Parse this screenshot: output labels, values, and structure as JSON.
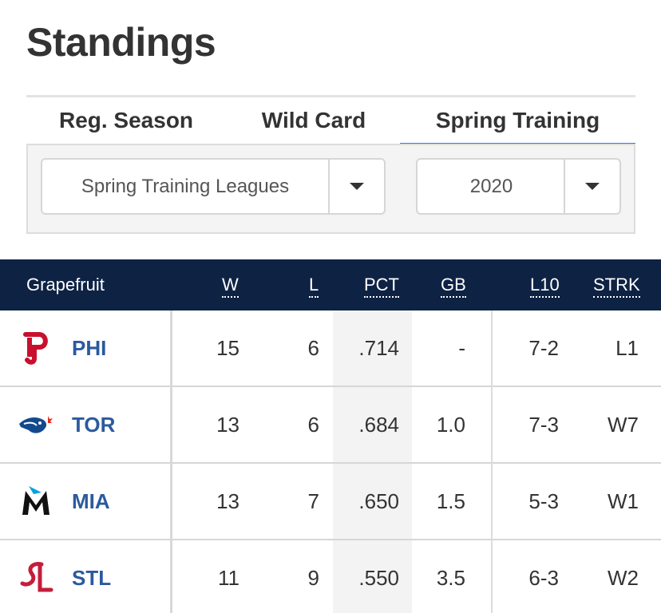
{
  "page_title": "Standings",
  "tabs": [
    {
      "label": "Reg. Season"
    },
    {
      "label": "Wild Card"
    },
    {
      "label": "Spring Training",
      "active": true
    }
  ],
  "filters": {
    "league_select": {
      "value": "Spring Training Leagues"
    },
    "year_select": {
      "value": "2020"
    }
  },
  "table": {
    "league": "Grapefruit",
    "columns": {
      "w": "W",
      "l": "L",
      "pct": "PCT",
      "gb": "GB",
      "l10": "L10",
      "strk": "STRK"
    },
    "rows": [
      {
        "abbr": "PHI",
        "logo_icon": "phillies-logo-icon",
        "w": "15",
        "l": "6",
        "pct": ".714",
        "gb": "-",
        "l10": "7-2",
        "strk": "L1"
      },
      {
        "abbr": "TOR",
        "logo_icon": "blue-jays-logo-icon",
        "w": "13",
        "l": "6",
        "pct": ".684",
        "gb": "1.0",
        "l10": "7-3",
        "strk": "W7"
      },
      {
        "abbr": "MIA",
        "logo_icon": "marlins-logo-icon",
        "w": "13",
        "l": "7",
        "pct": ".650",
        "gb": "1.5",
        "l10": "5-3",
        "strk": "W1"
      },
      {
        "abbr": "STL",
        "logo_icon": "cardinals-logo-icon",
        "w": "11",
        "l": "9",
        "pct": ".550",
        "gb": "3.5",
        "l10": "6-3",
        "strk": "W2"
      }
    ]
  },
  "colors": {
    "header_bg": "#0e2244",
    "active_tab_underline": "#2f7be6",
    "team_link": "#2b5a9e"
  }
}
